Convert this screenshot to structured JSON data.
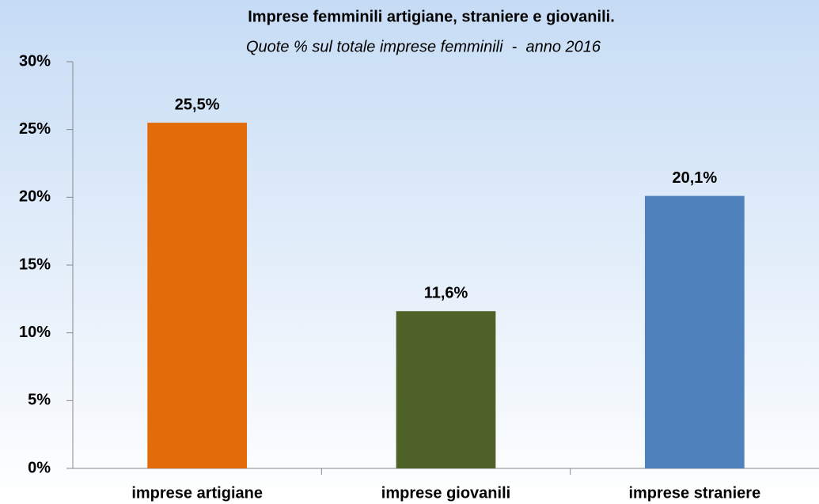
{
  "chart_data": {
    "type": "bar",
    "title": "Imprese femminili artigiane, straniere e giovanili.",
    "subtitle": "Quote % sul totale imprese femminili  -  anno 2016",
    "categories": [
      "imprese artigiane",
      "imprese giovanili",
      "imprese straniere"
    ],
    "values": [
      25.5,
      11.6,
      20.1
    ],
    "value_labels": [
      "25,5%",
      "11,6%",
      "20,1%"
    ],
    "colors": [
      "#e36c0a",
      "#4f6228",
      "#4f81bd"
    ],
    "ylim": [
      0,
      30
    ],
    "yticks": [
      {
        "value": 0,
        "label": "0%"
      },
      {
        "value": 5,
        "label": "5%"
      },
      {
        "value": 10,
        "label": "10%"
      },
      {
        "value": 15,
        "label": "15%"
      },
      {
        "value": 20,
        "label": "20%"
      },
      {
        "value": 25,
        "label": "25%"
      },
      {
        "value": 30,
        "label": "30%"
      }
    ],
    "grid": false
  }
}
